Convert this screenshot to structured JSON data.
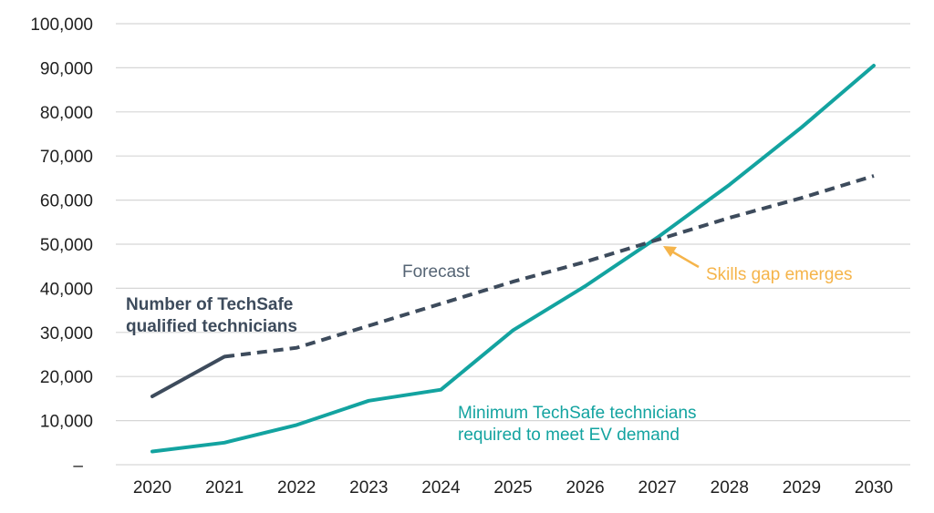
{
  "chart_data": {
    "type": "line",
    "title": "",
    "xlabel": "",
    "ylabel": "",
    "categories": [
      "2020",
      "2021",
      "2022",
      "2023",
      "2024",
      "2025",
      "2026",
      "2027",
      "2028",
      "2029",
      "2030"
    ],
    "ylim": [
      0,
      100000
    ],
    "y_ticks": [
      "–",
      "10,000",
      "20,000",
      "30,000",
      "40,000",
      "50,000",
      "60,000",
      "70,000",
      "80,000",
      "90,000",
      "100,000"
    ],
    "grid": true,
    "series": [
      {
        "name": "Number of TechSafe qualified technicians",
        "color": "#3d4b5c",
        "values": [
          15500,
          24500,
          26500,
          31500,
          36500,
          41500,
          46000,
          51000,
          56000,
          60500,
          65500
        ],
        "style_note": "solid 2020–2021, dashed 2021–2030 (forecast)"
      },
      {
        "name": "Minimum TechSafe technicians required to meet EV demand",
        "color": "#13a3a0",
        "values": [
          3000,
          5000,
          9000,
          14500,
          17000,
          30500,
          40500,
          51500,
          63500,
          76500,
          90500
        ]
      }
    ],
    "annotations": {
      "forecast": "Forecast",
      "gap": "Skills gap emerges",
      "gap_color": "#f5b44a",
      "qualified_line1": "Number of TechSafe",
      "qualified_line2": "qualified technicians",
      "required_line1": "Minimum TechSafe technicians",
      "required_line2": "required to meet EV demand"
    }
  }
}
